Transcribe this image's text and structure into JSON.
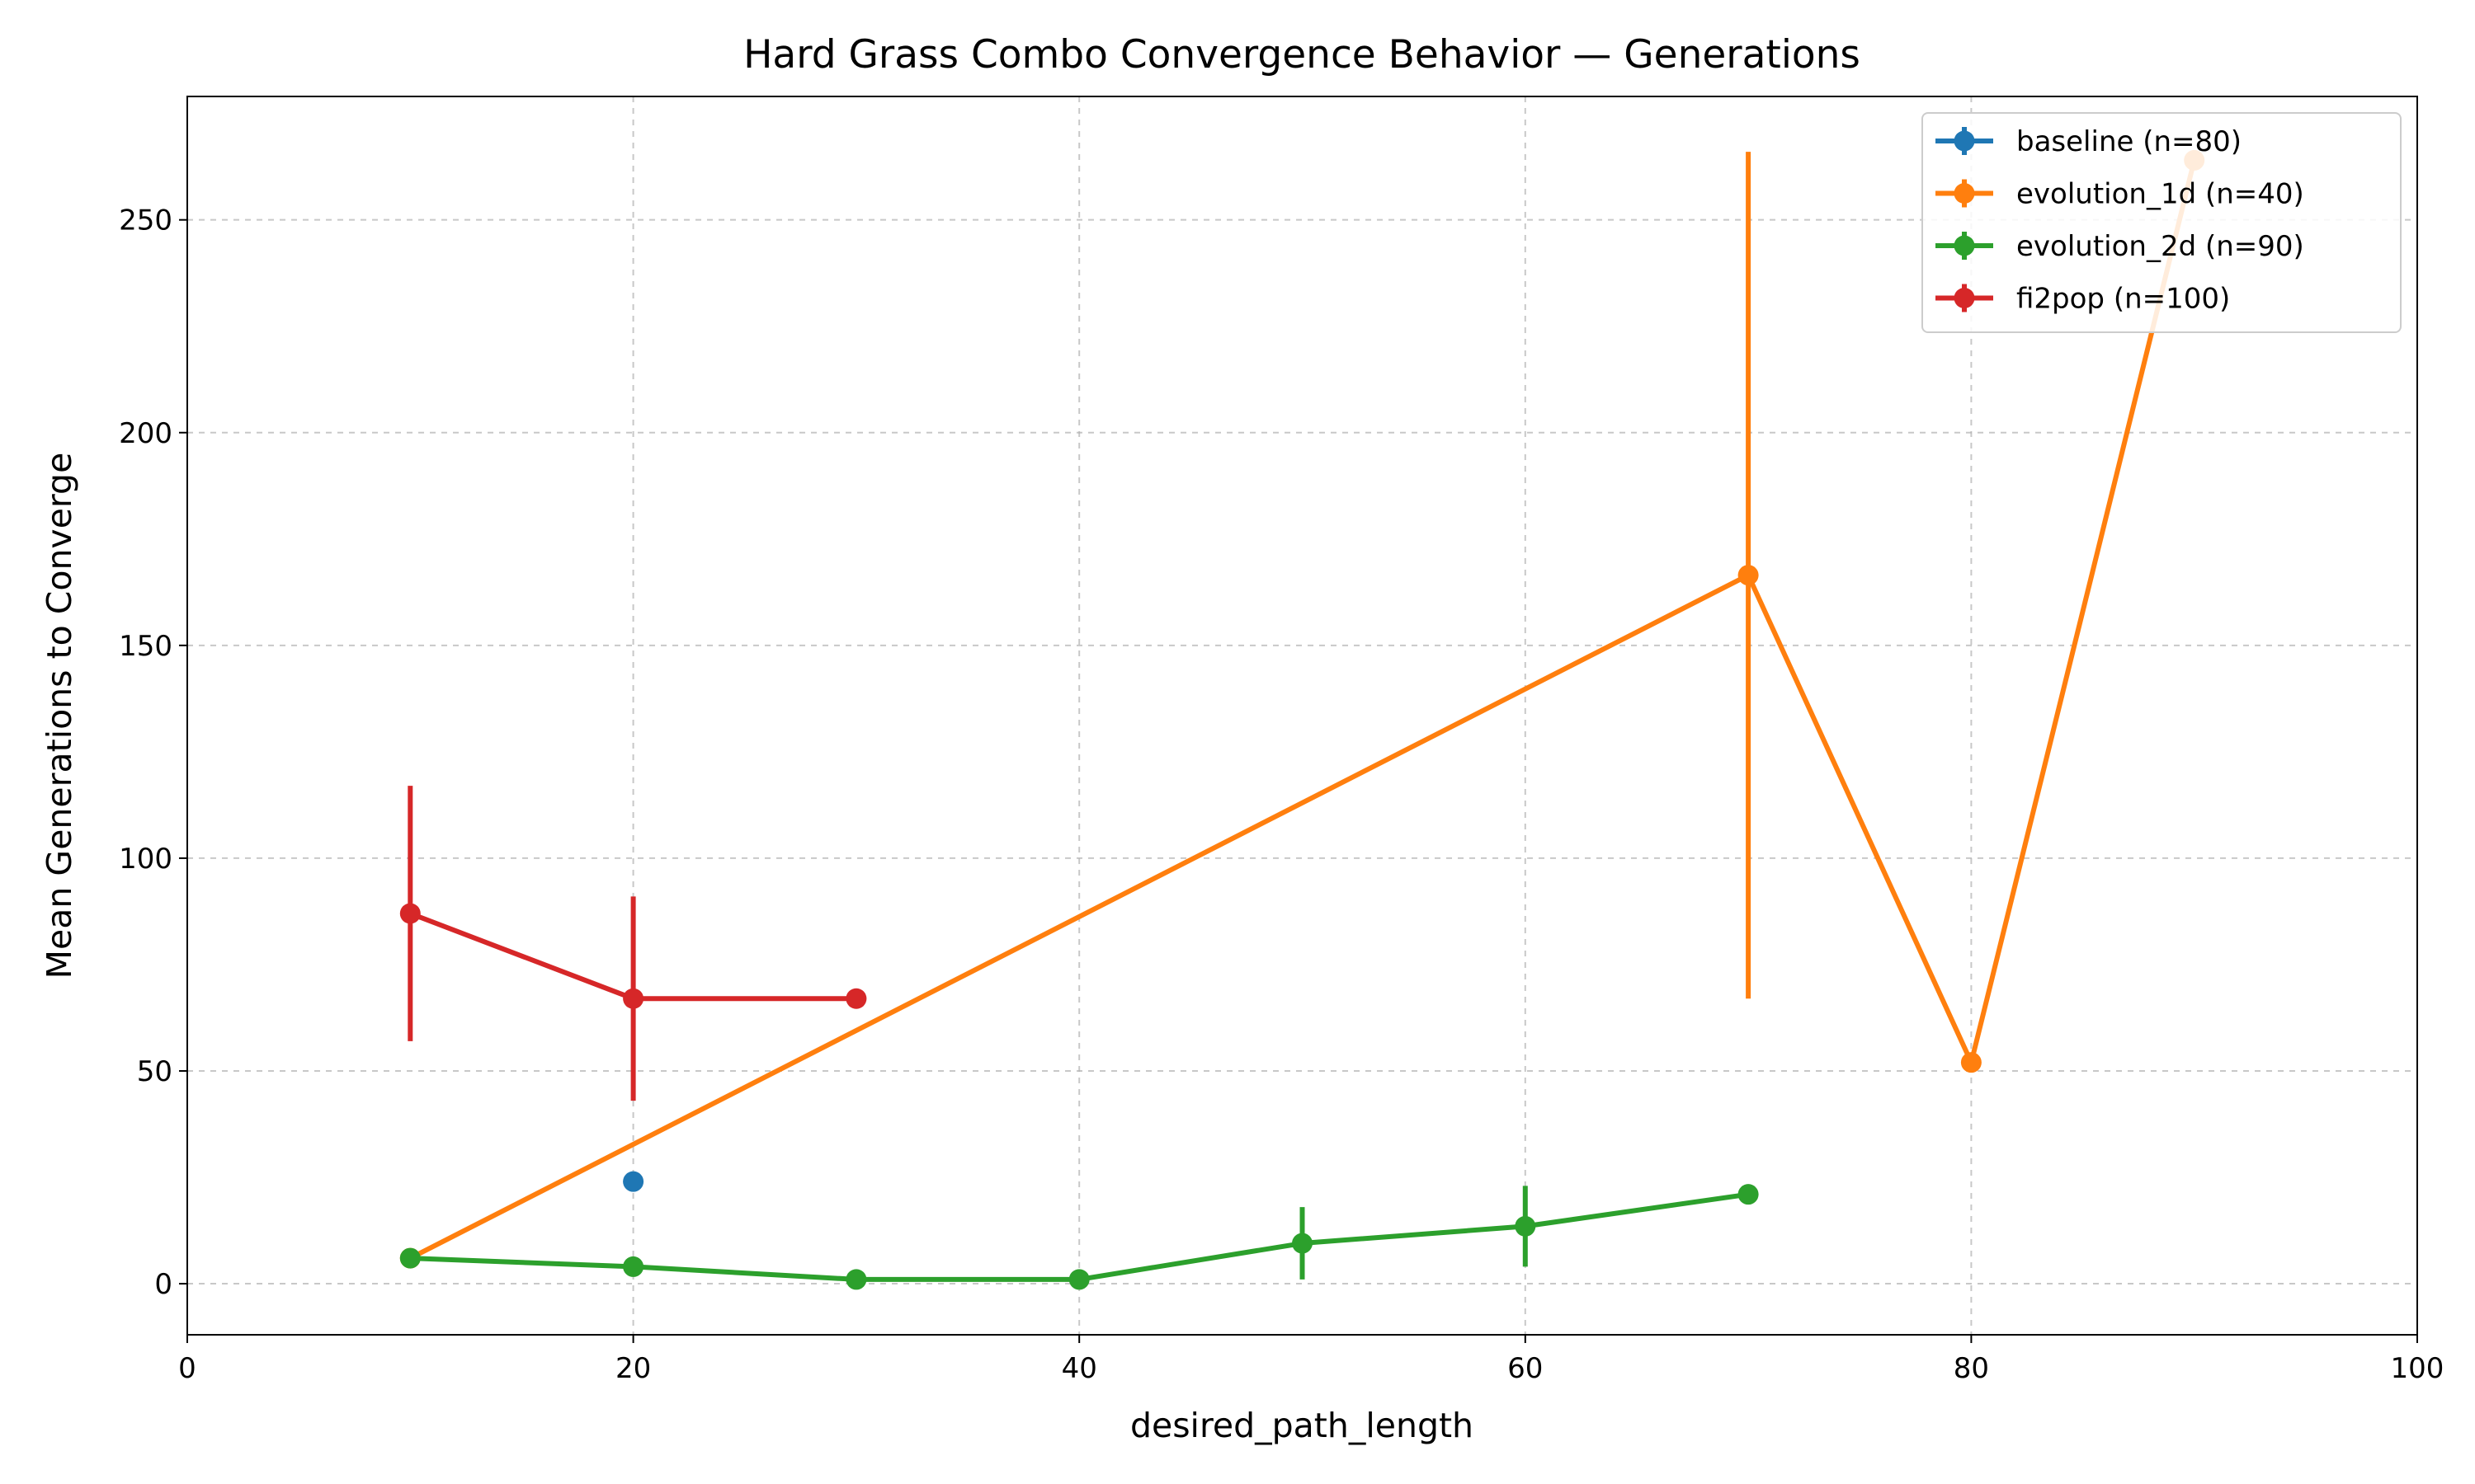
{
  "chart_data": {
    "type": "line",
    "title": "Hard Grass Combo Convergence Behavior — Generations",
    "xlabel": "desired_path_length",
    "ylabel": "Mean Generations to Converge",
    "xlim": [
      0,
      100
    ],
    "ylim": [
      -12,
      279
    ],
    "x_ticks": [
      0,
      20,
      40,
      60,
      80,
      100
    ],
    "y_ticks": [
      0,
      50,
      100,
      150,
      200,
      250
    ],
    "grid": true,
    "grid_style": "dashed",
    "legend_position": "top-right",
    "error_bars": true,
    "series": [
      {
        "name": "baseline (n=80)",
        "color": "#1f77b4",
        "points": [
          {
            "x": 20,
            "y": 24,
            "err": 0
          }
        ]
      },
      {
        "name": "evolution_1d (n=40)",
        "color": "#ff7f0e",
        "points": [
          {
            "x": 10,
            "y": 6,
            "err": 0
          },
          {
            "x": 70,
            "y": 166.5,
            "err": 99.5
          },
          {
            "x": 80,
            "y": 52,
            "err": 0
          },
          {
            "x": 90,
            "y": 264,
            "err": 0
          }
        ]
      },
      {
        "name": "evolution_2d (n=90)",
        "color": "#2ca02c",
        "points": [
          {
            "x": 10,
            "y": 6,
            "err": 0
          },
          {
            "x": 20,
            "y": 4,
            "err": 0
          },
          {
            "x": 30,
            "y": 1,
            "err": 0
          },
          {
            "x": 40,
            "y": 1,
            "err": 0
          },
          {
            "x": 50,
            "y": 9.5,
            "err": 8.5
          },
          {
            "x": 60,
            "y": 13.5,
            "err": 9.5
          },
          {
            "x": 70,
            "y": 21,
            "err": 0
          }
        ]
      },
      {
        "name": "fi2pop (n=100)",
        "color": "#d62728",
        "points": [
          {
            "x": 10,
            "y": 87,
            "err": 30
          },
          {
            "x": 20,
            "y": 67,
            "err": 24
          },
          {
            "x": 30,
            "y": 67,
            "err": 0
          }
        ]
      }
    ]
  }
}
